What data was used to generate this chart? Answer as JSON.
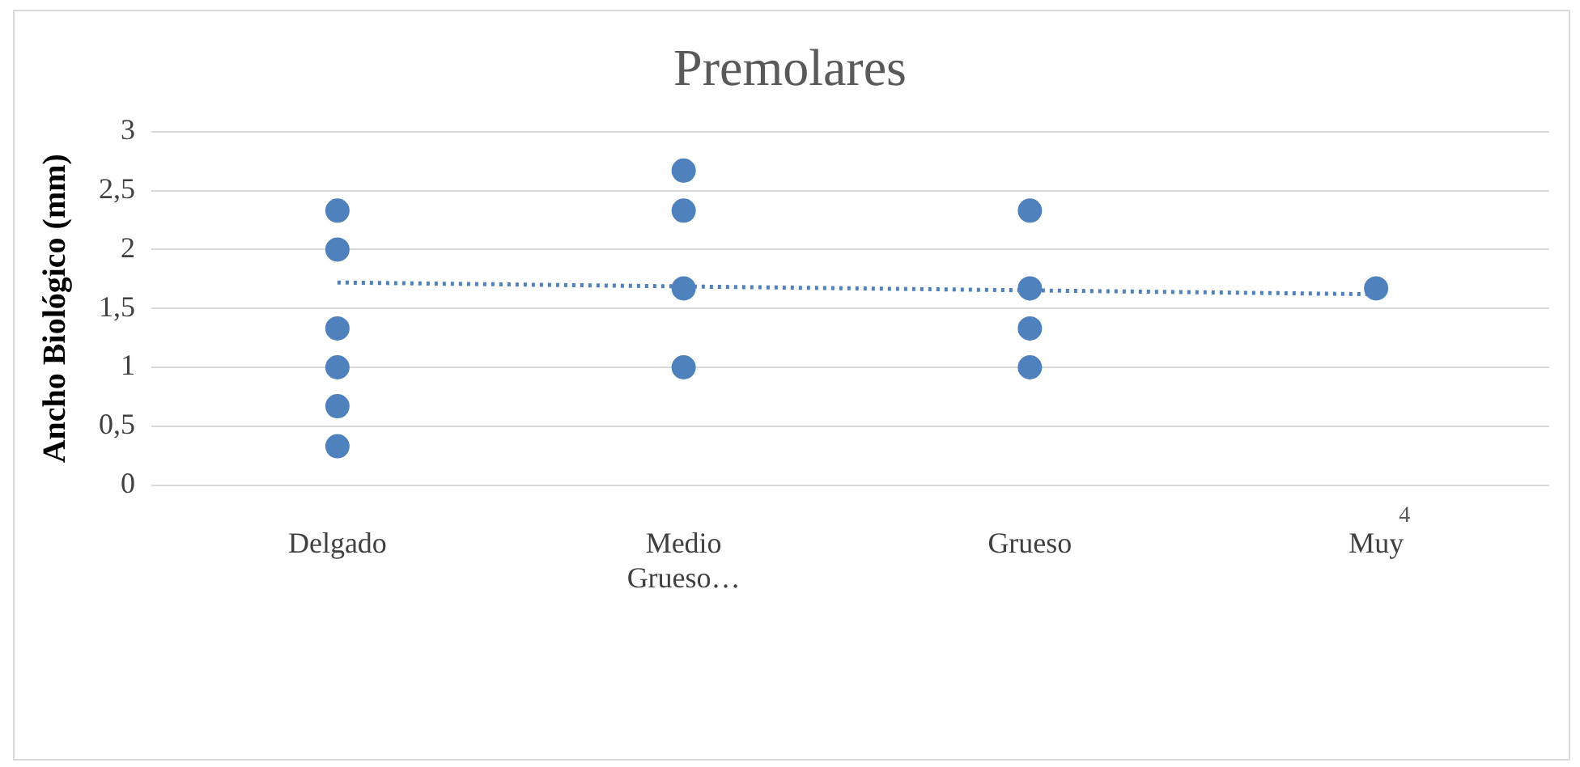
{
  "chart_data": {
    "type": "scatter",
    "title": "Premolares",
    "ylabel": "Ancho Biológico (mm)",
    "categories": [
      "Delgado",
      "Medio Grueso…",
      "Grueso",
      "Muy"
    ],
    "series": [
      {
        "type": "scatter",
        "color": "#4f81bd",
        "x": [
          "Delgado",
          "Delgado",
          "Delgado",
          "Delgado",
          "Delgado",
          "Delgado",
          "Medio Grueso…",
          "Medio Grueso…",
          "Medio Grueso…",
          "Medio Grueso…",
          "Grueso",
          "Grueso",
          "Grueso",
          "Grueso",
          "Muy"
        ],
        "values": [
          2.33,
          2,
          1.33,
          1,
          0.67,
          0.33,
          2.67,
          2.33,
          1.67,
          1,
          2.33,
          1.67,
          1.33,
          1,
          1.67
        ]
      },
      {
        "type": "line",
        "color": "#4f81bd",
        "line_style": "dotted",
        "marker": "none",
        "x": [
          "Delgado",
          "Muy"
        ],
        "values": [
          1.72,
          1.62
        ]
      }
    ],
    "ylim": [
      0,
      3
    ],
    "yticks": [
      0,
      {
        "value": 0.5,
        "label": "0,5"
      },
      1,
      {
        "value": 1.5,
        "label": "1,5"
      },
      2,
      {
        "value": 2.5,
        "label": "2,5"
      },
      3
    ],
    "grid": "y",
    "legend": false,
    "marker": "circle",
    "annotations": [
      "4"
    ]
  }
}
